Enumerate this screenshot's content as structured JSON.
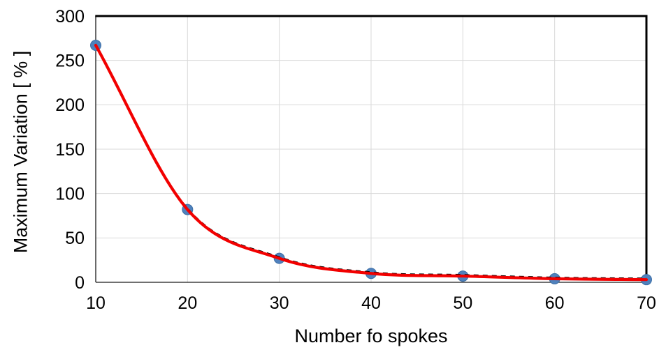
{
  "chart_data": {
    "type": "scatter",
    "title": "",
    "xlabel": "Number fo spokes",
    "ylabel": "Maximum Variation [ % ]",
    "x": [
      10,
      20,
      30,
      40,
      50,
      60,
      70
    ],
    "series": [
      {
        "name": "data-points",
        "style": "markers",
        "color": "#4F81BD",
        "values": [
          267,
          82,
          27,
          10,
          7,
          4,
          3
        ]
      },
      {
        "name": "trendline-dashed",
        "style": "dashed-line",
        "color": "#000000",
        "values": [
          267,
          82,
          27,
          10,
          7,
          4,
          3
        ]
      },
      {
        "name": "fit-line",
        "style": "solid-line",
        "color": "#F20000",
        "values": [
          267,
          82,
          27,
          10,
          7,
          4,
          3
        ]
      }
    ],
    "xlim": [
      10,
      70
    ],
    "ylim": [
      0,
      300
    ],
    "x_ticks": [
      10,
      20,
      30,
      40,
      50,
      60,
      70
    ],
    "y_ticks": [
      0,
      50,
      100,
      150,
      200,
      250,
      300
    ],
    "grid": true,
    "legend": false,
    "colors": {
      "background": "#FFFFFF",
      "gridline": "#D9D9D9",
      "axis": "#1A1A1A",
      "plot_border": "#000000",
      "tick_label": "#000000",
      "marker_fill": "#4F81BD",
      "marker_edge": "#3C6EA5",
      "line": "#F20000",
      "trendline": "#000000"
    }
  }
}
